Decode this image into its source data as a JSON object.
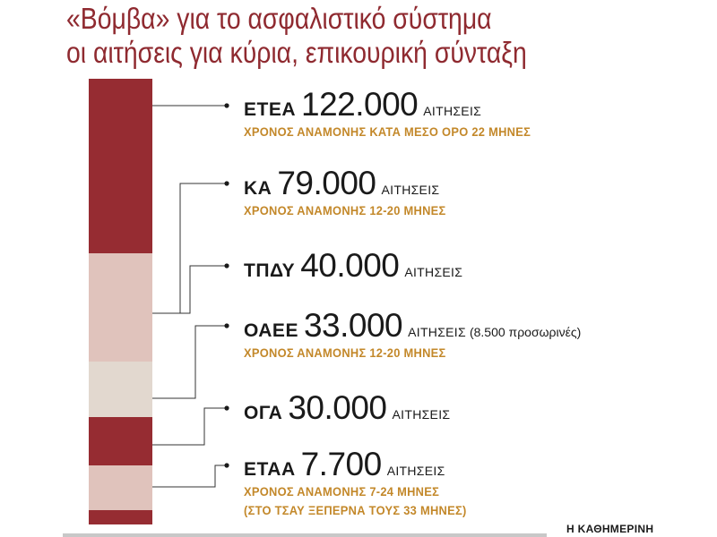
{
  "title": {
    "line1": "«Βόμβα» για το ασφαλιστικό σύστημα",
    "line2": "οι αιτήσεις για κύρια, επικουρική σύνταξη"
  },
  "colors": {
    "title": "#8f2a30",
    "dark_segment": "#962c32",
    "light_segment": "#e0c3bc",
    "beige_segment": "#e2d8cf",
    "subtitle": "#c3882a"
  },
  "chart_data": {
    "type": "bar",
    "stacked": true,
    "orientation": "vertical",
    "categories": [
      "ΕΤΕΑ",
      "ΚΑ",
      "ΤΠΔΥ",
      "ΟΑΕΕ",
      "ΟΓΑ",
      "ΕΤΑΑ"
    ],
    "values": [
      122000,
      79000,
      40000,
      33000,
      30000,
      7700
    ],
    "series": [
      {
        "fund": "ΕΤΕΑ",
        "value_text": "122.000",
        "unit": "ΑΙΤΗΣΕΙΣ",
        "extra": "",
        "notes": [
          "ΧΡΟΝΟΣ ΑΝΑΜΟΝΗΣ ΚΑΤΑ ΜΕΣΟ ΟΡΟ 22 ΜΗΝΕΣ"
        ],
        "color": "#962c32"
      },
      {
        "fund": "ΚΑ",
        "value_text": "79.000",
        "unit": "ΑΙΤΗΣΕΙΣ",
        "extra": "",
        "notes": [
          "ΧΡΟΝΟΣ ΑΝΑΜΟΝΗΣ 12-20 ΜΗΝΕΣ"
        ],
        "color": "#962c32"
      },
      {
        "fund": "ΤΠΔΥ",
        "value_text": "40.000",
        "unit": "ΑΙΤΗΣΕΙΣ",
        "extra": "",
        "notes": [],
        "color": "#e0c3bc"
      },
      {
        "fund": "ΟΑΕΕ",
        "value_text": "33.000",
        "unit": "ΑΙΤΗΣΕΙΣ",
        "extra": "(8.500 προσωρινές)",
        "notes": [
          "ΧΡΟΝΟΣ ΑΝΑΜΟΝΗΣ 12-20 ΜΗΝΕΣ"
        ],
        "color": "#e2d8cf"
      },
      {
        "fund": "ΟΓΑ",
        "value_text": "30.000",
        "unit": "ΑΙΤΗΣΕΙΣ",
        "extra": "",
        "notes": [],
        "color": "#962c32"
      },
      {
        "fund": "ΕΤΑΑ",
        "value_text": "7.700",
        "unit": "ΑΙΤΗΣΕΙΣ",
        "extra": "",
        "notes": [
          "ΧΡΟΝΟΣ ΑΝΑΜΟΝΗΣ 7-24 ΜΗΝΕΣ",
          "(ΣΤΟ ΤΣΑΥ ΞΕΠΕΡΝΑ ΤΟΥΣ 33 ΜΗΝΕΣ)"
        ],
        "color": "#e0c3bc"
      }
    ],
    "segments_note": "",
    "grid": false,
    "legend": "none"
  },
  "source": "Η ΚΑΘΗΜΕΡΙΝΗ"
}
